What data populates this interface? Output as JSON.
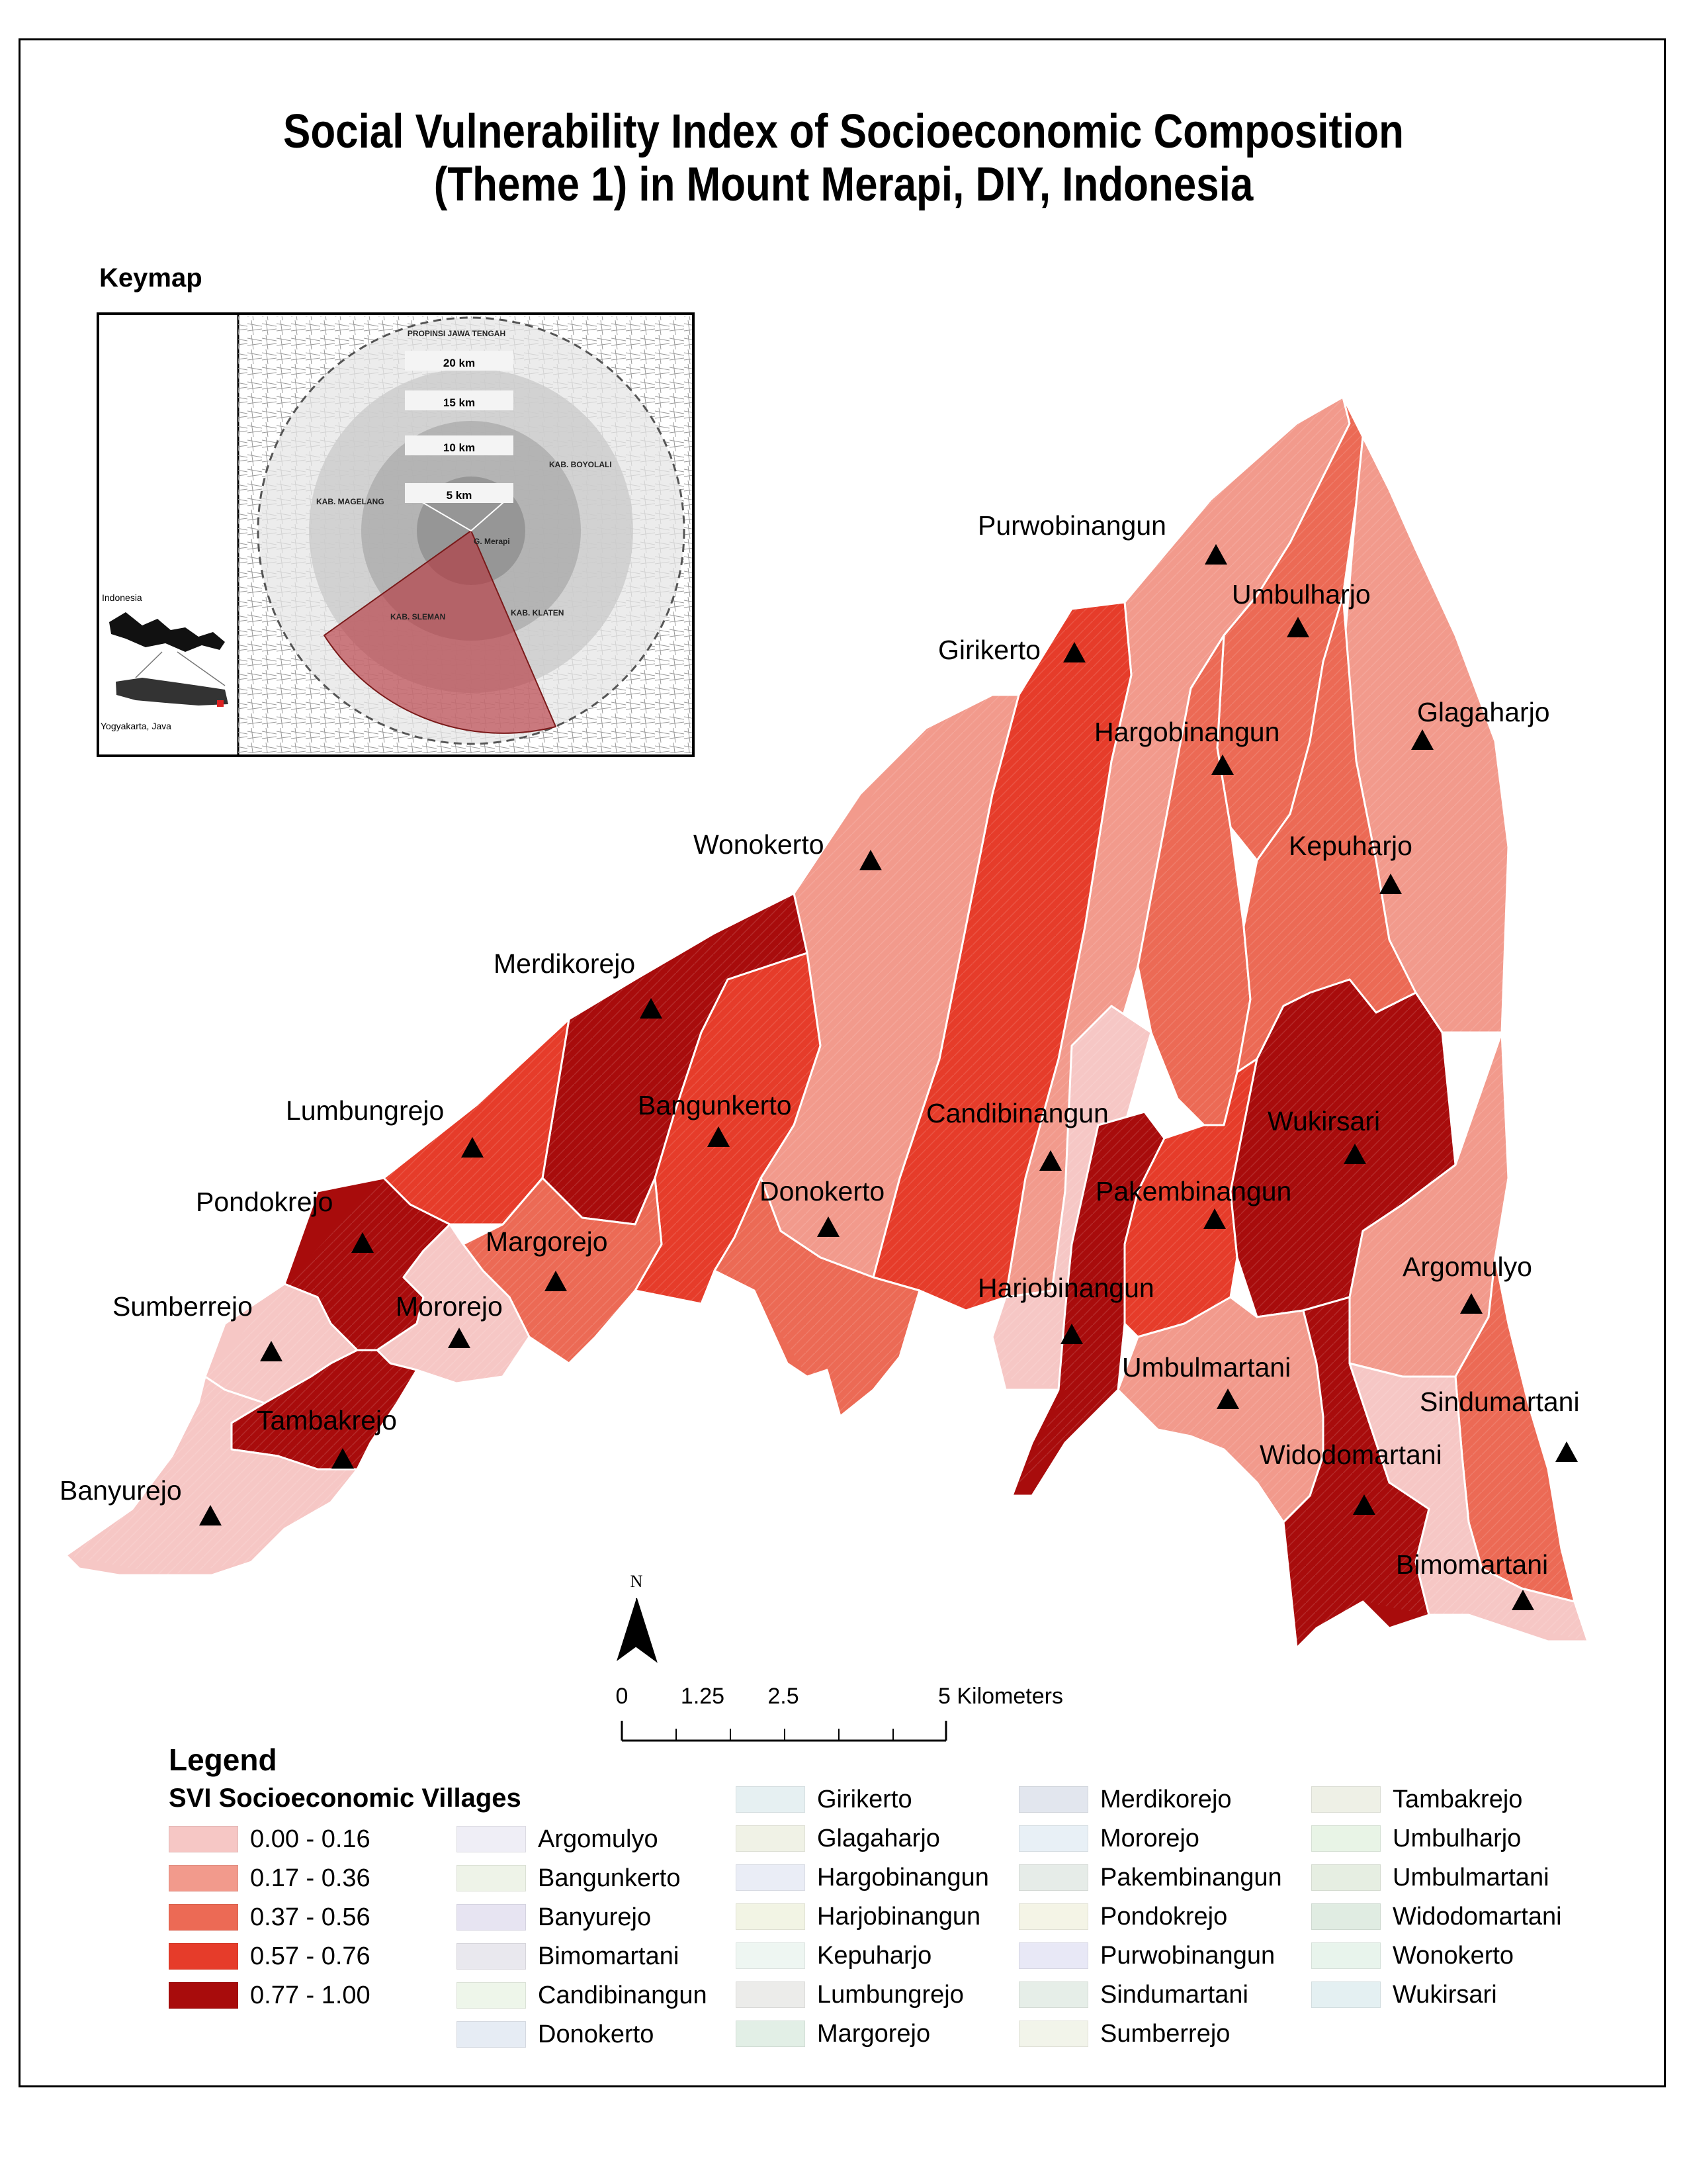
{
  "title_line1": "Social Vulnerability Index of Socioeconomic Composition",
  "title_line2": "(Theme 1) in Mount Merapi, DIY, Indonesia",
  "keymap": {
    "title": "Keymap",
    "rings": [
      "20 km",
      "15 km",
      "10 km",
      "5 km"
    ],
    "region_labels": [
      "PROPINSI JAWA TENGAH",
      "KAB. BOYOLALI",
      "KAB. MAGELANG",
      "G. Merapi",
      "KAB. SLEMAN",
      "KAB. KLATEN"
    ],
    "inset_country": "Indonesia",
    "inset_region": "Yogyakarta, Java"
  },
  "villages": [
    {
      "name": "Purwobinangun",
      "class": 1
    },
    {
      "name": "Umbulharjo",
      "class": 2
    },
    {
      "name": "Girikerto",
      "class": 3
    },
    {
      "name": "Glagaharjo",
      "class": 1
    },
    {
      "name": "Hargobinangun",
      "class": 2
    },
    {
      "name": "Wonokerto",
      "class": 1
    },
    {
      "name": "Kepuharjo",
      "class": 2
    },
    {
      "name": "Merdikorejo",
      "class": 4
    },
    {
      "name": "Lumbungrejo",
      "class": 3
    },
    {
      "name": "Bangunkerto",
      "class": 3
    },
    {
      "name": "Candibinangun",
      "class": 0
    },
    {
      "name": "Wukirsari",
      "class": 4
    },
    {
      "name": "Donokerto",
      "class": 2
    },
    {
      "name": "Pakembinangun",
      "class": 3
    },
    {
      "name": "Pondokrejo",
      "class": 4
    },
    {
      "name": "Margorejo",
      "class": 2
    },
    {
      "name": "Argomulyo",
      "class": 1
    },
    {
      "name": "Harjobinangun",
      "class": 4
    },
    {
      "name": "Sumberrejo",
      "class": 0
    },
    {
      "name": "Mororejo",
      "class": 0
    },
    {
      "name": "Umbulmartani",
      "class": 1
    },
    {
      "name": "Sindumartani",
      "class": 2
    },
    {
      "name": "Tambakrejo",
      "class": 4
    },
    {
      "name": "Widodomartani",
      "class": 4
    },
    {
      "name": "Banyurejo",
      "class": 0
    },
    {
      "name": "Bimomartani",
      "class": 0
    }
  ],
  "north_label": "N",
  "scale": {
    "ticks": [
      "0",
      "1.25",
      "2.5",
      "5 Kilometers"
    ]
  },
  "legend": {
    "title": "Legend",
    "subtitle": "SVI Socioeconomic Villages",
    "classes": [
      {
        "label": "0.00 - 0.16",
        "color": "#f6c7c5"
      },
      {
        "label": "0.17 - 0.36",
        "color": "#f29a8c"
      },
      {
        "label": "0.37 - 0.56",
        "color": "#ec6a55"
      },
      {
        "label": "0.57 - 0.76",
        "color": "#e63c2a"
      },
      {
        "label": "0.77 - 1.00",
        "color": "#a80c0c"
      }
    ],
    "village_entries": [
      {
        "label": "Argomulyo",
        "color": "#efeef6"
      },
      {
        "label": "Bangunkerto",
        "color": "#eef3e8"
      },
      {
        "label": "Banyurejo",
        "color": "#e7e4f2"
      },
      {
        "label": "Bimomartani",
        "color": "#e9e8ee"
      },
      {
        "label": "Candibinangun",
        "color": "#eef6ea"
      },
      {
        "label": "Donokerto",
        "color": "#e6ecf4"
      },
      {
        "label": "Girikerto",
        "color": "#e6f0f2"
      },
      {
        "label": "Glagaharjo",
        "color": "#f0f2e6"
      },
      {
        "label": "Hargobinangun",
        "color": "#eaedf6"
      },
      {
        "label": "Harjobinangun",
        "color": "#f2f4e4"
      },
      {
        "label": "Kepuharjo",
        "color": "#eef6f2"
      },
      {
        "label": "Lumbungrejo",
        "color": "#ececea"
      },
      {
        "label": "Margorejo",
        "color": "#e2efe6"
      },
      {
        "label": "Merdikorejo",
        "color": "#e2e6ee"
      },
      {
        "label": "Mororejo",
        "color": "#e8f0f6"
      },
      {
        "label": "Pakembinangun",
        "color": "#e6ece8"
      },
      {
        "label": "Pondokrejo",
        "color": "#f4f4e6"
      },
      {
        "label": "Purwobinangun",
        "color": "#e8e8f6"
      },
      {
        "label": "Sindumartani",
        "color": "#e6eee8"
      },
      {
        "label": "Sumberrejo",
        "color": "#f2f4ea"
      },
      {
        "label": "Tambakrejo",
        "color": "#eef0e6"
      },
      {
        "label": "Umbulharjo",
        "color": "#e8f4e6"
      },
      {
        "label": "Umbulmartani",
        "color": "#e6eee2"
      },
      {
        "label": "Widodomartani",
        "color": "#e0ece2"
      },
      {
        "label": "Wonokerto",
        "color": "#e8f4ec"
      },
      {
        "label": "Wukirsari",
        "color": "#e4f0f2"
      }
    ]
  }
}
